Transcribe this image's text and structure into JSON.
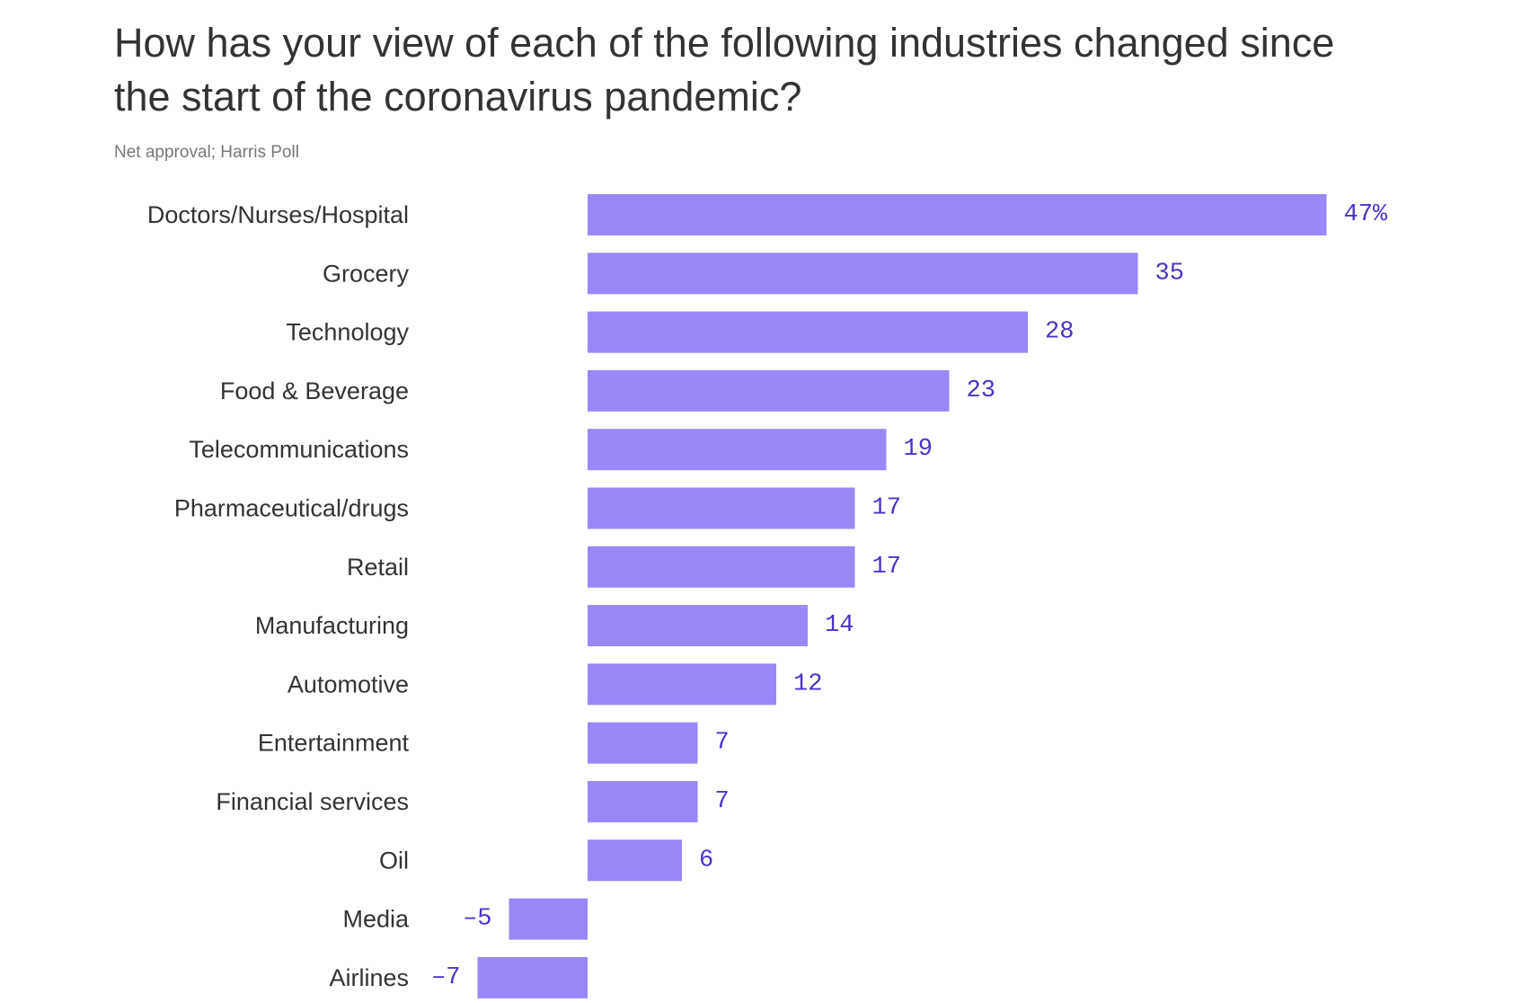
{
  "chart_data": {
    "type": "bar",
    "orientation": "horizontal",
    "title": "How has your view of each of the following industries changed since the start of the coronavirus pandemic?",
    "subtitle": "Net approval; Harris Poll",
    "unit_suffix": "%",
    "categories": [
      "Doctors/Nurses/Hospital",
      "Grocery",
      "Technology",
      "Food & Beverage",
      "Telecommunications",
      "Pharmaceutical/drugs",
      "Retail",
      "Manufacturing",
      "Automotive",
      "Entertainment",
      "Financial services",
      "Oil",
      "Media",
      "Airlines"
    ],
    "values": [
      47,
      35,
      28,
      23,
      19,
      17,
      17,
      14,
      12,
      7,
      7,
      6,
      -5,
      -7
    ],
    "value_labels": [
      "47%",
      "35",
      "28",
      "23",
      "19",
      "17",
      "17",
      "14",
      "12",
      "7",
      "7",
      "6",
      "–5",
      "–7"
    ],
    "xlim": [
      -7,
      47
    ],
    "grid": false,
    "legend": "none",
    "colors": {
      "bar": "#9b87f5",
      "value_label": "#4a33c8",
      "category_label": "#333333",
      "title": "#333333",
      "subtitle": "#777777"
    }
  }
}
